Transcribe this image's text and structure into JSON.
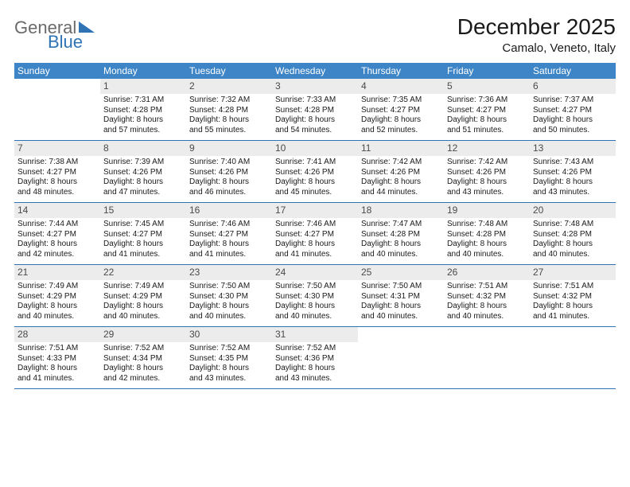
{
  "logo": {
    "part1": "General",
    "part2": "Blue"
  },
  "title": "December 2025",
  "location": "Camalo, Veneto, Italy",
  "colors": {
    "header_bg": "#3d85c6",
    "header_text": "#ffffff",
    "daynum_bg": "#ececec",
    "daynum_text": "#4a4a4a",
    "rule": "#2f73b5",
    "logo_gray": "#6a6a6a",
    "logo_blue": "#2f73b5"
  },
  "weekdays": [
    "Sunday",
    "Monday",
    "Tuesday",
    "Wednesday",
    "Thursday",
    "Friday",
    "Saturday"
  ],
  "weeks": [
    [
      {
        "n": "",
        "lines": []
      },
      {
        "n": "1",
        "lines": [
          "Sunrise: 7:31 AM",
          "Sunset: 4:28 PM",
          "Daylight: 8 hours",
          "and 57 minutes."
        ]
      },
      {
        "n": "2",
        "lines": [
          "Sunrise: 7:32 AM",
          "Sunset: 4:28 PM",
          "Daylight: 8 hours",
          "and 55 minutes."
        ]
      },
      {
        "n": "3",
        "lines": [
          "Sunrise: 7:33 AM",
          "Sunset: 4:28 PM",
          "Daylight: 8 hours",
          "and 54 minutes."
        ]
      },
      {
        "n": "4",
        "lines": [
          "Sunrise: 7:35 AM",
          "Sunset: 4:27 PM",
          "Daylight: 8 hours",
          "and 52 minutes."
        ]
      },
      {
        "n": "5",
        "lines": [
          "Sunrise: 7:36 AM",
          "Sunset: 4:27 PM",
          "Daylight: 8 hours",
          "and 51 minutes."
        ]
      },
      {
        "n": "6",
        "lines": [
          "Sunrise: 7:37 AM",
          "Sunset: 4:27 PM",
          "Daylight: 8 hours",
          "and 50 minutes."
        ]
      }
    ],
    [
      {
        "n": "7",
        "lines": [
          "Sunrise: 7:38 AM",
          "Sunset: 4:27 PM",
          "Daylight: 8 hours",
          "and 48 minutes."
        ]
      },
      {
        "n": "8",
        "lines": [
          "Sunrise: 7:39 AM",
          "Sunset: 4:26 PM",
          "Daylight: 8 hours",
          "and 47 minutes."
        ]
      },
      {
        "n": "9",
        "lines": [
          "Sunrise: 7:40 AM",
          "Sunset: 4:26 PM",
          "Daylight: 8 hours",
          "and 46 minutes."
        ]
      },
      {
        "n": "10",
        "lines": [
          "Sunrise: 7:41 AM",
          "Sunset: 4:26 PM",
          "Daylight: 8 hours",
          "and 45 minutes."
        ]
      },
      {
        "n": "11",
        "lines": [
          "Sunrise: 7:42 AM",
          "Sunset: 4:26 PM",
          "Daylight: 8 hours",
          "and 44 minutes."
        ]
      },
      {
        "n": "12",
        "lines": [
          "Sunrise: 7:42 AM",
          "Sunset: 4:26 PM",
          "Daylight: 8 hours",
          "and 43 minutes."
        ]
      },
      {
        "n": "13",
        "lines": [
          "Sunrise: 7:43 AM",
          "Sunset: 4:26 PM",
          "Daylight: 8 hours",
          "and 43 minutes."
        ]
      }
    ],
    [
      {
        "n": "14",
        "lines": [
          "Sunrise: 7:44 AM",
          "Sunset: 4:27 PM",
          "Daylight: 8 hours",
          "and 42 minutes."
        ]
      },
      {
        "n": "15",
        "lines": [
          "Sunrise: 7:45 AM",
          "Sunset: 4:27 PM",
          "Daylight: 8 hours",
          "and 41 minutes."
        ]
      },
      {
        "n": "16",
        "lines": [
          "Sunrise: 7:46 AM",
          "Sunset: 4:27 PM",
          "Daylight: 8 hours",
          "and 41 minutes."
        ]
      },
      {
        "n": "17",
        "lines": [
          "Sunrise: 7:46 AM",
          "Sunset: 4:27 PM",
          "Daylight: 8 hours",
          "and 41 minutes."
        ]
      },
      {
        "n": "18",
        "lines": [
          "Sunrise: 7:47 AM",
          "Sunset: 4:28 PM",
          "Daylight: 8 hours",
          "and 40 minutes."
        ]
      },
      {
        "n": "19",
        "lines": [
          "Sunrise: 7:48 AM",
          "Sunset: 4:28 PM",
          "Daylight: 8 hours",
          "and 40 minutes."
        ]
      },
      {
        "n": "20",
        "lines": [
          "Sunrise: 7:48 AM",
          "Sunset: 4:28 PM",
          "Daylight: 8 hours",
          "and 40 minutes."
        ]
      }
    ],
    [
      {
        "n": "21",
        "lines": [
          "Sunrise: 7:49 AM",
          "Sunset: 4:29 PM",
          "Daylight: 8 hours",
          "and 40 minutes."
        ]
      },
      {
        "n": "22",
        "lines": [
          "Sunrise: 7:49 AM",
          "Sunset: 4:29 PM",
          "Daylight: 8 hours",
          "and 40 minutes."
        ]
      },
      {
        "n": "23",
        "lines": [
          "Sunrise: 7:50 AM",
          "Sunset: 4:30 PM",
          "Daylight: 8 hours",
          "and 40 minutes."
        ]
      },
      {
        "n": "24",
        "lines": [
          "Sunrise: 7:50 AM",
          "Sunset: 4:30 PM",
          "Daylight: 8 hours",
          "and 40 minutes."
        ]
      },
      {
        "n": "25",
        "lines": [
          "Sunrise: 7:50 AM",
          "Sunset: 4:31 PM",
          "Daylight: 8 hours",
          "and 40 minutes."
        ]
      },
      {
        "n": "26",
        "lines": [
          "Sunrise: 7:51 AM",
          "Sunset: 4:32 PM",
          "Daylight: 8 hours",
          "and 40 minutes."
        ]
      },
      {
        "n": "27",
        "lines": [
          "Sunrise: 7:51 AM",
          "Sunset: 4:32 PM",
          "Daylight: 8 hours",
          "and 41 minutes."
        ]
      }
    ],
    [
      {
        "n": "28",
        "lines": [
          "Sunrise: 7:51 AM",
          "Sunset: 4:33 PM",
          "Daylight: 8 hours",
          "and 41 minutes."
        ]
      },
      {
        "n": "29",
        "lines": [
          "Sunrise: 7:52 AM",
          "Sunset: 4:34 PM",
          "Daylight: 8 hours",
          "and 42 minutes."
        ]
      },
      {
        "n": "30",
        "lines": [
          "Sunrise: 7:52 AM",
          "Sunset: 4:35 PM",
          "Daylight: 8 hours",
          "and 43 minutes."
        ]
      },
      {
        "n": "31",
        "lines": [
          "Sunrise: 7:52 AM",
          "Sunset: 4:36 PM",
          "Daylight: 8 hours",
          "and 43 minutes."
        ]
      },
      {
        "n": "",
        "lines": []
      },
      {
        "n": "",
        "lines": []
      },
      {
        "n": "",
        "lines": []
      }
    ]
  ]
}
